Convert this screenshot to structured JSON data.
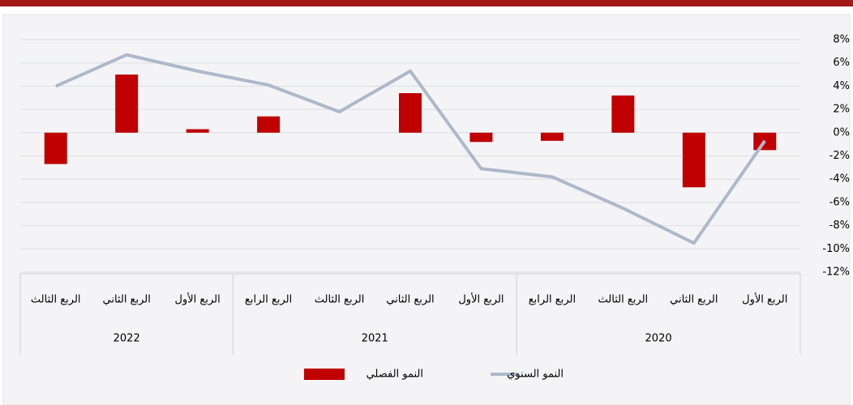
{
  "chart_data": {
    "type": "bar_line",
    "categories": [
      "الربع الأول",
      "الربع الثاني",
      "الربع الثالث",
      "الربع الرابع",
      "الربع الأول",
      "الربع الثاني",
      "الربع الثالث",
      "الربع الرابع",
      "الربع الأول",
      "الربع الثاني",
      "الربع الثالث"
    ],
    "category_groups": [
      {
        "label": "2020",
        "span": 4
      },
      {
        "label": "2021",
        "span": 4
      },
      {
        "label": "2022",
        "span": 3
      }
    ],
    "x_direction": "right-to-left",
    "series": [
      {
        "name": "النمو الفصلي",
        "type": "bar",
        "color": "#c00000",
        "values": [
          -1.5,
          -4.7,
          3.2,
          -0.7,
          -0.8,
          3.4,
          0,
          1.4,
          0.3,
          5.0,
          -2.7
        ]
      },
      {
        "name": "النمو السنوي",
        "type": "line",
        "color": "#adb9ca",
        "values": [
          -0.7,
          -9.5,
          -6.5,
          -3.8,
          -3.1,
          5.3,
          1.8,
          4.1,
          5.3,
          6.7,
          4.0
        ]
      }
    ],
    "ylim": [
      -12,
      8
    ],
    "yticks": [
      {
        "value": 8,
        "label": "8%"
      },
      {
        "value": 6,
        "label": "6%"
      },
      {
        "value": 4,
        "label": "4%"
      },
      {
        "value": 2,
        "label": "2%"
      },
      {
        "value": 0,
        "label": "0%"
      },
      {
        "value": -2,
        "label": "-2%"
      },
      {
        "value": -4,
        "label": "-4%"
      },
      {
        "value": -6,
        "label": "-6%"
      },
      {
        "value": -8,
        "label": "-8%"
      },
      {
        "value": -10,
        "label": "-10%"
      },
      {
        "value": -12,
        "label": "-12%"
      }
    ],
    "grid": true,
    "legend": "bottom"
  }
}
